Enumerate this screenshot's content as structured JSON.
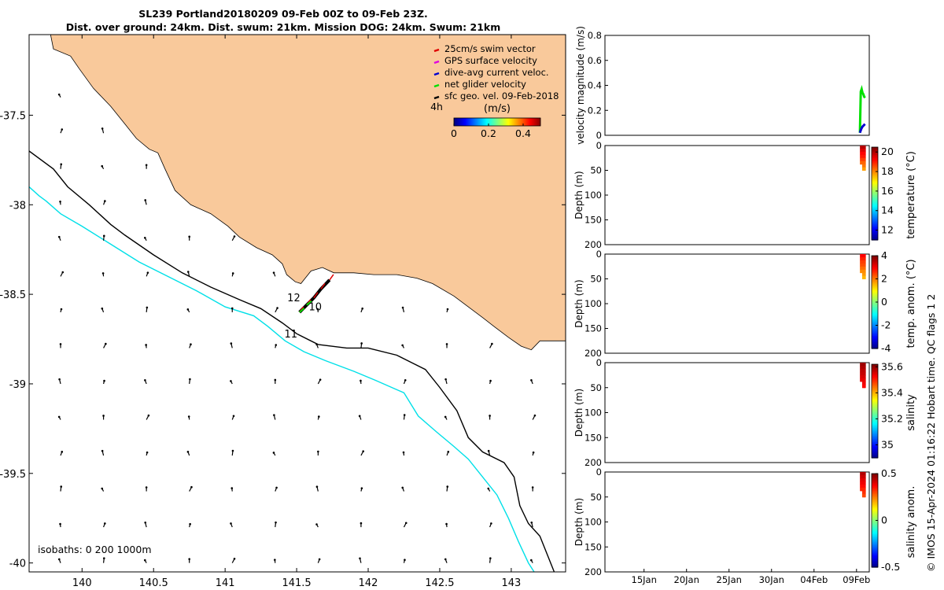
{
  "header": {
    "title_line1": "SL239 Portland20180209 09-Feb 00Z to 09-Feb 23Z.",
    "title_line2": "Dist. over ground: 24km. Dist. swum: 21km. Mission DOG: 24km. Swum: 21km"
  },
  "credit": "© IMOS 15-Apr-2024 01:16:22 Hobart time. QC flags 1  2",
  "colors": {
    "land": "#f9c99b",
    "isobath_200": "#00e0e8",
    "isobath_1000": "#000000",
    "glider_track": "#000000",
    "swim": "#e00000",
    "gps": "#e000e0",
    "dive_avg": "#0000d0",
    "net": "#00e000"
  },
  "chart_data": [
    {
      "type": "map",
      "name": "glider-track-map",
      "xlim": [
        139.63,
        143.38
      ],
      "ylim": [
        -40.05,
        -37.05
      ],
      "x_ticks": [
        140,
        140.5,
        141,
        141.5,
        142,
        142.5,
        143
      ],
      "x_tick_labels": [
        "140",
        "140.5",
        "141",
        "141.5",
        "142",
        "142.5",
        "143"
      ],
      "y_ticks": [
        -37.5,
        -38,
        -38.5,
        -39,
        -39.5,
        -40
      ],
      "y_tick_labels": [
        "-37.5",
        "-38",
        "-38.5",
        "-39",
        "-39.5",
        "-40"
      ],
      "legend": {
        "placement": "top-right",
        "items": [
          {
            "label": "25cm/s swim vector",
            "color": "#e00000"
          },
          {
            "label": "GPS surface velocity",
            "color": "#e000e0"
          },
          {
            "label": "dive-avg current veloc.",
            "color": "#0000d0"
          },
          {
            "label": "net glider velocity",
            "color": "#00e000"
          },
          {
            "label": "sfc geo. vel. 09-Feb-2018",
            "color": "#000000"
          }
        ]
      },
      "colorbar": {
        "label": "(m/s)",
        "ticks": [
          0,
          0.2,
          0.4
        ],
        "tick_labels": [
          "0",
          "0.2",
          "0.4"
        ],
        "range": [
          0,
          0.5
        ]
      },
      "hour_label": "4h",
      "isobaths_label": "isobaths: 0   200  1000m",
      "track_labels": [
        {
          "text": "12",
          "lon": 141.48,
          "lat": -38.54
        },
        {
          "text": "10",
          "lon": 141.63,
          "lat": -38.59
        },
        {
          "text": "11",
          "lon": 141.46,
          "lat": -38.74
        }
      ],
      "track": [
        [
          141.52,
          -38.6
        ],
        [
          141.57,
          -38.56
        ],
        [
          141.62,
          -38.52
        ],
        [
          141.67,
          -38.47
        ],
        [
          141.73,
          -38.42
        ]
      ],
      "coastline": [
        [
          139.78,
          -37.05
        ],
        [
          139.8,
          -37.13
        ],
        [
          139.92,
          -37.17
        ],
        [
          139.98,
          -37.24
        ],
        [
          140.08,
          -37.35
        ],
        [
          140.2,
          -37.45
        ],
        [
          140.3,
          -37.55
        ],
        [
          140.38,
          -37.63
        ],
        [
          140.47,
          -37.69
        ],
        [
          140.53,
          -37.71
        ],
        [
          140.58,
          -37.8
        ],
        [
          140.65,
          -37.92
        ],
        [
          140.76,
          -38.0
        ],
        [
          140.9,
          -38.05
        ],
        [
          141.02,
          -38.12
        ],
        [
          141.1,
          -38.18
        ],
        [
          141.22,
          -38.24
        ],
        [
          141.33,
          -38.28
        ],
        [
          141.4,
          -38.33
        ],
        [
          141.43,
          -38.39
        ],
        [
          141.49,
          -38.43
        ],
        [
          141.53,
          -38.44
        ],
        [
          141.6,
          -38.37
        ],
        [
          141.68,
          -38.35
        ],
        [
          141.76,
          -38.38
        ],
        [
          141.9,
          -38.38
        ],
        [
          142.04,
          -38.39
        ],
        [
          142.2,
          -38.39
        ],
        [
          142.34,
          -38.41
        ],
        [
          142.45,
          -38.44
        ],
        [
          142.6,
          -38.51
        ],
        [
          142.7,
          -38.57
        ],
        [
          142.8,
          -38.63
        ],
        [
          142.88,
          -38.68
        ],
        [
          142.98,
          -38.74
        ],
        [
          143.07,
          -38.79
        ],
        [
          143.14,
          -38.81
        ],
        [
          143.2,
          -38.76
        ],
        [
          143.3,
          -38.76
        ],
        [
          143.38,
          -38.76
        ]
      ],
      "isobath_1000": [
        [
          139.63,
          -37.7
        ],
        [
          139.8,
          -37.8
        ],
        [
          139.9,
          -37.9
        ],
        [
          140.05,
          -38.0
        ],
        [
          140.2,
          -38.11
        ],
        [
          140.3,
          -38.17
        ],
        [
          140.5,
          -38.28
        ],
        [
          140.7,
          -38.38
        ],
        [
          140.9,
          -38.46
        ],
        [
          141.1,
          -38.53
        ],
        [
          141.25,
          -38.58
        ],
        [
          141.4,
          -38.66
        ],
        [
          141.5,
          -38.72
        ],
        [
          141.65,
          -38.78
        ],
        [
          141.85,
          -38.8
        ],
        [
          142.0,
          -38.8
        ],
        [
          142.2,
          -38.84
        ],
        [
          142.3,
          -38.88
        ],
        [
          142.4,
          -38.92
        ],
        [
          142.5,
          -39.02
        ],
        [
          142.62,
          -39.15
        ],
        [
          142.7,
          -39.3
        ],
        [
          142.8,
          -39.38
        ],
        [
          142.95,
          -39.44
        ],
        [
          143.02,
          -39.52
        ],
        [
          143.06,
          -39.68
        ],
        [
          143.12,
          -39.78
        ],
        [
          143.2,
          -39.85
        ],
        [
          143.25,
          -39.95
        ],
        [
          143.3,
          -40.05
        ]
      ],
      "isobath_200": [
        [
          139.63,
          -37.9
        ],
        [
          139.7,
          -37.95
        ],
        [
          139.75,
          -37.98
        ],
        [
          139.85,
          -38.05
        ],
        [
          140.0,
          -38.12
        ],
        [
          140.2,
          -38.22
        ],
        [
          140.4,
          -38.32
        ],
        [
          140.6,
          -38.4
        ],
        [
          140.8,
          -38.48
        ],
        [
          141.0,
          -38.57
        ],
        [
          141.2,
          -38.62
        ],
        [
          141.3,
          -38.68
        ],
        [
          141.42,
          -38.76
        ],
        [
          141.55,
          -38.82
        ],
        [
          141.7,
          -38.87
        ],
        [
          141.9,
          -38.93
        ],
        [
          142.05,
          -38.98
        ],
        [
          142.25,
          -39.05
        ],
        [
          142.35,
          -39.18
        ],
        [
          142.48,
          -39.27
        ],
        [
          142.6,
          -39.35
        ],
        [
          142.7,
          -39.42
        ],
        [
          142.8,
          -39.52
        ],
        [
          142.9,
          -39.62
        ],
        [
          142.98,
          -39.75
        ],
        [
          143.05,
          -39.88
        ],
        [
          143.12,
          -40.0
        ],
        [
          143.16,
          -40.05
        ]
      ]
    },
    {
      "type": "line",
      "name": "velocity-magnitude",
      "ylabel": "velocity magnitude (m/s)",
      "ylim": [
        0,
        0.8
      ],
      "y_tick_labels": [
        "0",
        "0.2",
        "0.4",
        "0.6",
        "0.8"
      ],
      "series": [
        {
          "color": "#00e000",
          "x_day": [
            40.4,
            40.5,
            40.6,
            40.7,
            40.8,
            40.9,
            41.0
          ],
          "values": [
            0.02,
            0.35,
            0.37,
            0.34,
            0.33,
            0.31,
            0.3
          ]
        },
        {
          "color": "#0000d0",
          "x_day": [
            40.4,
            40.55,
            40.7,
            40.85,
            41.0
          ],
          "values": [
            0.02,
            0.05,
            0.07,
            0.08,
            0.09
          ]
        }
      ]
    },
    {
      "type": "heatmap",
      "name": "temperature",
      "ylabel": "Depth (m)",
      "ylim": [
        200,
        0
      ],
      "y_tick_labels": [
        "0",
        "50",
        "100",
        "150",
        "200"
      ],
      "colorbar_label": "temperature (°C)",
      "colorbar_ticks": [
        "12",
        "14",
        "16",
        "18",
        "20"
      ],
      "colorbar_range": [
        11,
        20.5
      ],
      "data_depth_m": 50,
      "value_range": [
        17,
        20
      ]
    },
    {
      "type": "heatmap",
      "name": "temp-anomaly",
      "ylabel": "Depth (m)",
      "ylim": [
        200,
        0
      ],
      "y_tick_labels": [
        "0",
        "50",
        "100",
        "150",
        "200"
      ],
      "colorbar_label": "temp. anom. (°C)",
      "colorbar_ticks": [
        "-4",
        "-2",
        "0",
        "2",
        "4"
      ],
      "colorbar_range": [
        -4,
        4
      ],
      "data_depth_m": 50,
      "value_range": [
        1,
        3
      ]
    },
    {
      "type": "heatmap",
      "name": "salinity",
      "ylabel": "Depth (m)",
      "ylim": [
        200,
        0
      ],
      "y_tick_labels": [
        "0",
        "50",
        "100",
        "150",
        "200"
      ],
      "colorbar_label": "salinity",
      "colorbar_ticks": [
        "35",
        "35.2",
        "35.4",
        "35.6"
      ],
      "colorbar_range": [
        34.9,
        35.62
      ],
      "data_depth_m": 50,
      "value_range": [
        35.5,
        35.6
      ]
    },
    {
      "type": "heatmap",
      "name": "salinity-anomaly",
      "ylabel": "Depth (m)",
      "ylim": [
        200,
        0
      ],
      "y_tick_labels": [
        "0",
        "50",
        "100",
        "150",
        "200"
      ],
      "colorbar_label": "salinity anom.",
      "colorbar_ticks": [
        "-0.5",
        "0",
        "0.5"
      ],
      "colorbar_range": [
        -0.5,
        0.5
      ],
      "data_depth_m": 50,
      "value_range": [
        0.25,
        0.45
      ]
    }
  ],
  "time_axis": {
    "x_tick_labels": [
      "15Jan",
      "20Jan",
      "25Jan",
      "30Jan",
      "04Feb",
      "09Feb"
    ],
    "x_tick_days": [
      15,
      20,
      25,
      30,
      35,
      40
    ],
    "xlim_days": [
      10.4,
      41.5
    ]
  }
}
